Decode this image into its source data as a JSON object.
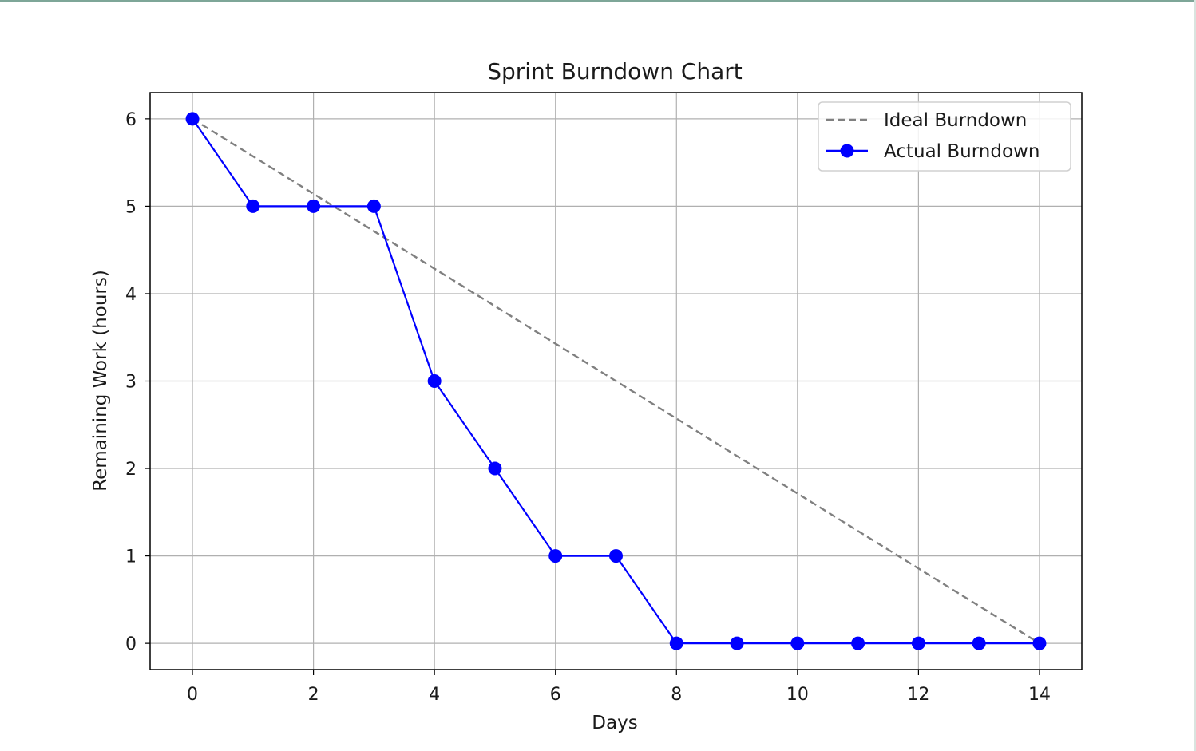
{
  "chart_data": {
    "type": "line",
    "title": "Sprint Burndown Chart",
    "xlabel": "Days",
    "ylabel": "Remaining Work (hours)",
    "xlim": [
      -0.7,
      14.7
    ],
    "ylim": [
      -0.3,
      6.3
    ],
    "xticks": [
      0,
      2,
      4,
      6,
      8,
      10,
      12,
      14
    ],
    "yticks": [
      0,
      1,
      2,
      3,
      4,
      5,
      6
    ],
    "grid": true,
    "legend_position": "top-right",
    "series": [
      {
        "name": "Ideal Burndown",
        "style": "dashed",
        "color": "#808080",
        "x": [
          0,
          14
        ],
        "y": [
          6,
          0
        ]
      },
      {
        "name": "Actual Burndown",
        "style": "solid-markers",
        "color": "#0000ff",
        "x": [
          0,
          1,
          2,
          3,
          4,
          5,
          6,
          7,
          8,
          9,
          10,
          11,
          12,
          13,
          14
        ],
        "y": [
          6,
          5,
          5,
          5,
          3,
          2,
          1,
          1,
          0,
          0,
          0,
          0,
          0,
          0,
          0
        ]
      }
    ]
  }
}
